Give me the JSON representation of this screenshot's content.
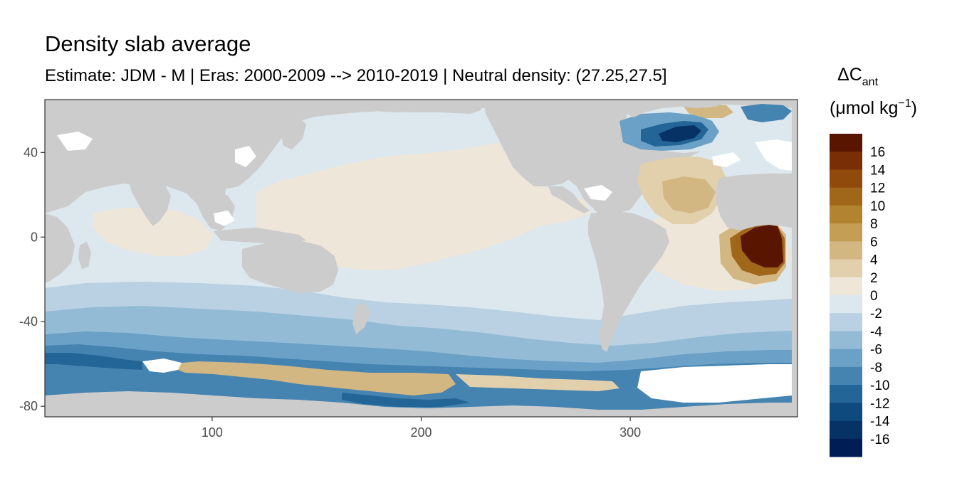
{
  "title": "Density slab average",
  "subtitle": "Estimate: JDM - M | Eras: 2000-2009 --> 2010-2019 | Neutral density: (27.25,27.5]",
  "legend": {
    "title_prefix": "ΔC",
    "title_sub": "ant",
    "units_open": "(μmol kg",
    "units_sup": "−1",
    "units_close": ")",
    "tick_labels": [
      "16",
      "14",
      "12",
      "10",
      "8",
      "6",
      "4",
      "2",
      "0",
      "-2",
      "-4",
      "-6",
      "-8",
      "-10",
      "-12",
      "-14",
      "-16"
    ],
    "bin_colors": [
      "#5a1500",
      "#7a2e05",
      "#8f4a0c",
      "#a06619",
      "#b3842f",
      "#c49e55",
      "#d3b783",
      "#e2d0ad",
      "#eee6d9",
      "#dce7ee",
      "#b9d1e2",
      "#93bbd6",
      "#6ba1c6",
      "#4583b1",
      "#236597",
      "#0f4a7f",
      "#063266",
      "#001e55"
    ]
  },
  "chart_data": {
    "type": "heatmap",
    "title": "Density slab average",
    "subtitle": "Estimate: JDM - M | Eras: 2000-2009 --> 2010-2019 | Neutral density: (27.25,27.5]",
    "xlabel": "",
    "ylabel": "",
    "x_ticks": [
      100,
      200,
      300
    ],
    "y_ticks": [
      40,
      0,
      -40,
      -80
    ],
    "xlim": [
      20,
      380
    ],
    "ylim": [
      -85,
      65
    ],
    "colorbar": {
      "variable": "ΔCant",
      "units": "μmol kg−1",
      "breaks": [
        18,
        16,
        14,
        12,
        10,
        8,
        6,
        4,
        2,
        0,
        -2,
        -4,
        -6,
        -8,
        -10,
        -12,
        -14,
        -16,
        -18
      ]
    },
    "land_color": "#cccccc",
    "missing_color": "#ffffff",
    "grid": true
  }
}
